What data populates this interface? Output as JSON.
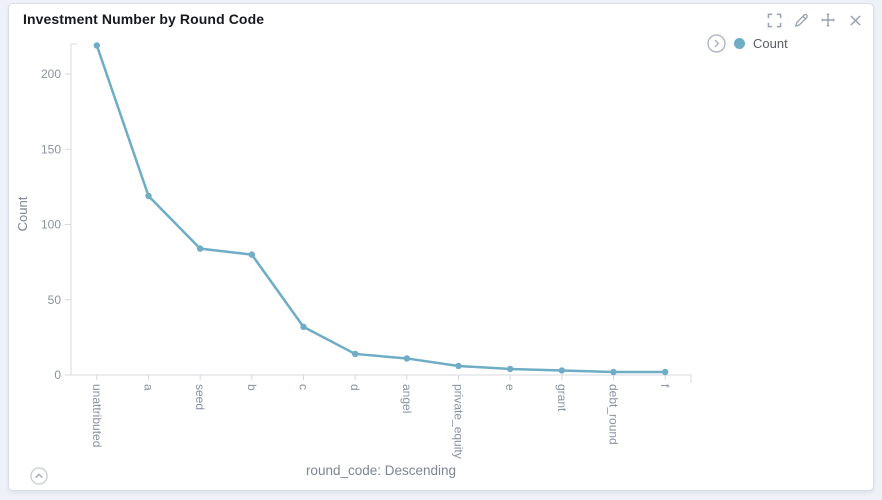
{
  "panel": {
    "title": "Investment Number by Round Code",
    "toolbar_icons": [
      "fullscreen-icon",
      "edit-icon",
      "move-icon",
      "close-icon"
    ],
    "collapse_icon": "chevron-up-icon"
  },
  "legend": {
    "toggle_icon": "chevron-right-icon",
    "items": [
      {
        "label": "Count",
        "color": "#6eadc5"
      }
    ]
  },
  "chart_data": {
    "type": "line",
    "title": "Investment Number by Round Code",
    "categories": [
      "unattributed",
      "a",
      "seed",
      "b",
      "c",
      "d",
      "angel",
      "private_equity",
      "e",
      "grant",
      "debt_round",
      "f"
    ],
    "series": [
      {
        "name": "Count",
        "color": "#6eadc5",
        "values": [
          219,
          119,
          84,
          80,
          32,
          14,
          11,
          6,
          4,
          3,
          2,
          2
        ]
      }
    ],
    "xlabel": "round_code: Descending",
    "ylabel": "Count",
    "yticks": [
      0,
      50,
      100,
      150,
      200
    ],
    "ylim": [
      0,
      220
    ],
    "grid": false,
    "legend_position": "top-right",
    "x_tick_rotation": 90
  },
  "colors": {
    "page_bg": "#eef1f7",
    "panel_bg": "#ffffff",
    "panel_border": "#d9dee8",
    "accent_line": "#6eadc5",
    "axis_line": "#d4d9e1",
    "tick_label": "#8a93a2",
    "axis_title": "#7d8594",
    "icon": "#98a2b3"
  }
}
